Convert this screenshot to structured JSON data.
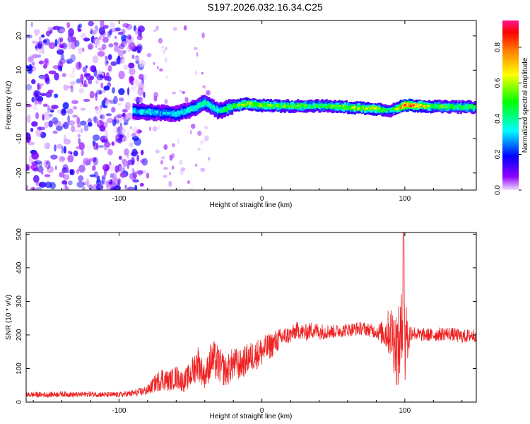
{
  "chart_data": [
    {
      "type": "heatmap",
      "title": "S197.2026.032.16.34.C25",
      "xlabel": "Height of straight line (km)",
      "ylabel": "Frequency (Hz)",
      "xlim": [
        -165,
        150
      ],
      "ylim": [
        -25,
        24.5
      ],
      "xticks": [
        -100,
        0,
        100
      ],
      "xtick_labels": [
        "-100",
        "0",
        "100"
      ],
      "yticks": [
        -20,
        -10,
        0,
        10,
        20
      ],
      "ytick_labels": [
        "-20",
        "-10",
        "0",
        "10",
        "20"
      ],
      "colorbar": {
        "label": "Normalized spectral amplitude",
        "range": [
          0,
          0.95
        ],
        "ticks": [
          0.0,
          0.2,
          0.4,
          0.6,
          0.8
        ],
        "tick_labels": [
          "0.0",
          "0.2",
          "0.4",
          "0.6",
          "0.8"
        ],
        "colormap": "rainbow",
        "stops": [
          "#f0e0ff",
          "#8f00ff",
          "#0000ff",
          "#00ffff",
          "#00ff00",
          "#ffff00",
          "#ff7f00",
          "#ff0000",
          "#ff1493"
        ]
      },
      "noise_region": {
        "x_range": [
          -165,
          -82
        ],
        "y_range": [
          -25,
          24
        ],
        "amplitude": 0.2
      },
      "ridge": [
        {
          "x": -90,
          "freq": -2.0,
          "amp": 0.3
        },
        {
          "x": -80,
          "freq": -2.2,
          "amp": 0.35
        },
        {
          "x": -70,
          "freq": -2.5,
          "amp": 0.3
        },
        {
          "x": -60,
          "freq": -2.8,
          "amp": 0.33
        },
        {
          "x": -50,
          "freq": -1.5,
          "amp": 0.35
        },
        {
          "x": -40,
          "freq": 0.5,
          "amp": 0.4
        },
        {
          "x": -30,
          "freq": -2.0,
          "amp": 0.35
        },
        {
          "x": -20,
          "freq": -0.5,
          "amp": 0.5
        },
        {
          "x": -10,
          "freq": 0.2,
          "amp": 0.6
        },
        {
          "x": 0,
          "freq": -0.3,
          "amp": 0.55
        },
        {
          "x": 20,
          "freq": -0.5,
          "amp": 0.5
        },
        {
          "x": 40,
          "freq": -0.4,
          "amp": 0.45
        },
        {
          "x": 60,
          "freq": -0.8,
          "amp": 0.55
        },
        {
          "x": 80,
          "freq": -1.3,
          "amp": 0.6
        },
        {
          "x": 90,
          "freq": -1.8,
          "amp": 0.35
        },
        {
          "x": 100,
          "freq": -0.2,
          "amp": 0.9
        },
        {
          "x": 120,
          "freq": -0.6,
          "amp": 0.5
        },
        {
          "x": 150,
          "freq": -0.8,
          "amp": 0.45
        }
      ]
    },
    {
      "type": "line",
      "xlabel": "Height of straight line (km)",
      "ylabel": "SNR (10 * v/v)",
      "xlim": [
        -165,
        150
      ],
      "ylim": [
        0,
        505
      ],
      "xticks": [
        -100,
        0,
        100
      ],
      "xtick_labels": [
        "-100",
        "0",
        "100"
      ],
      "yticks": [
        0,
        100,
        200,
        300,
        400,
        500
      ],
      "ytick_labels": [
        "0",
        "100",
        "200",
        "300",
        "400",
        "500"
      ],
      "series": [
        {
          "name": "SNR",
          "color": "#ee2222",
          "x": [
            -165,
            -150,
            -140,
            -130,
            -120,
            -110,
            -100,
            -90,
            -80,
            -75,
            -70,
            -65,
            -60,
            -55,
            -50,
            -45,
            -40,
            -35,
            -30,
            -25,
            -20,
            -15,
            -10,
            -5,
            0,
            5,
            10,
            15,
            20,
            25,
            30,
            35,
            40,
            50,
            60,
            70,
            80,
            85,
            90,
            93,
            95,
            97,
            98,
            99,
            100,
            101,
            102,
            104,
            107,
            110,
            120,
            130,
            140,
            150
          ],
          "values": [
            22,
            22,
            24,
            22,
            24,
            22,
            22,
            26,
            35,
            55,
            70,
            62,
            75,
            60,
            80,
            120,
            75,
            130,
            110,
            90,
            115,
            110,
            130,
            140,
            150,
            165,
            180,
            195,
            200,
            215,
            205,
            215,
            210,
            210,
            215,
            220,
            210,
            205,
            210,
            180,
            150,
            190,
            200,
            430,
            130,
            250,
            170,
            210,
            205,
            200,
            200,
            205,
            195,
            200
          ],
          "amplitude": [
            8,
            8,
            8,
            8,
            8,
            8,
            8,
            10,
            15,
            25,
            35,
            30,
            35,
            30,
            40,
            55,
            35,
            60,
            55,
            45,
            50,
            45,
            45,
            45,
            45,
            40,
            35,
            30,
            25,
            25,
            25,
            25,
            25,
            20,
            20,
            20,
            20,
            40,
            80,
            110,
            120,
            130,
            140,
            100,
            120,
            90,
            60,
            25,
            20,
            20,
            20,
            20,
            20,
            20
          ]
        }
      ]
    }
  ]
}
